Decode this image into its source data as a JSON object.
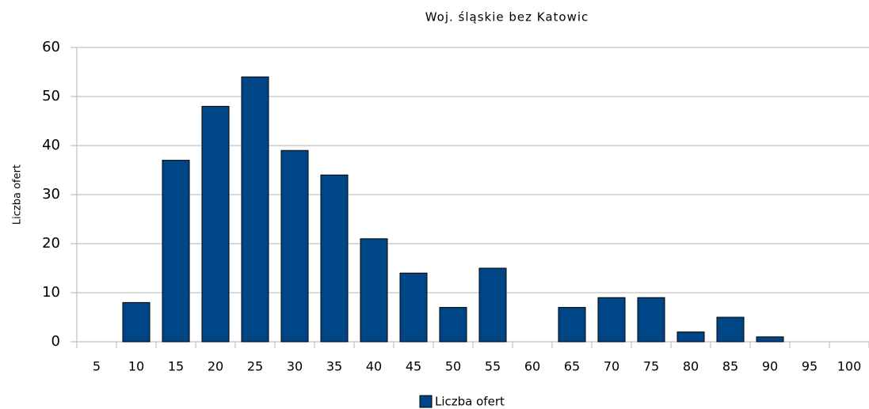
{
  "chart_data": {
    "type": "bar",
    "title": "Woj. śląskie bez Katowic",
    "y_label": "Liczba ofert",
    "categories": [
      "5",
      "10",
      "15",
      "20",
      "25",
      "30",
      "35",
      "40",
      "45",
      "50",
      "55",
      "60",
      "65",
      "70",
      "75",
      "80",
      "85",
      "90",
      "95",
      "100"
    ],
    "series": [
      {
        "name": "Liczba ofert",
        "color": "#004586",
        "values": [
          0,
          8,
          37,
          48,
          54,
          39,
          34,
          21,
          14,
          7,
          15,
          0,
          7,
          9,
          9,
          2,
          5,
          1,
          0,
          0
        ]
      }
    ],
    "ylim": [
      0,
      60
    ],
    "yticks": [
      0,
      10,
      20,
      30,
      40,
      50,
      60
    ],
    "grid": true,
    "legend": "bottom"
  }
}
